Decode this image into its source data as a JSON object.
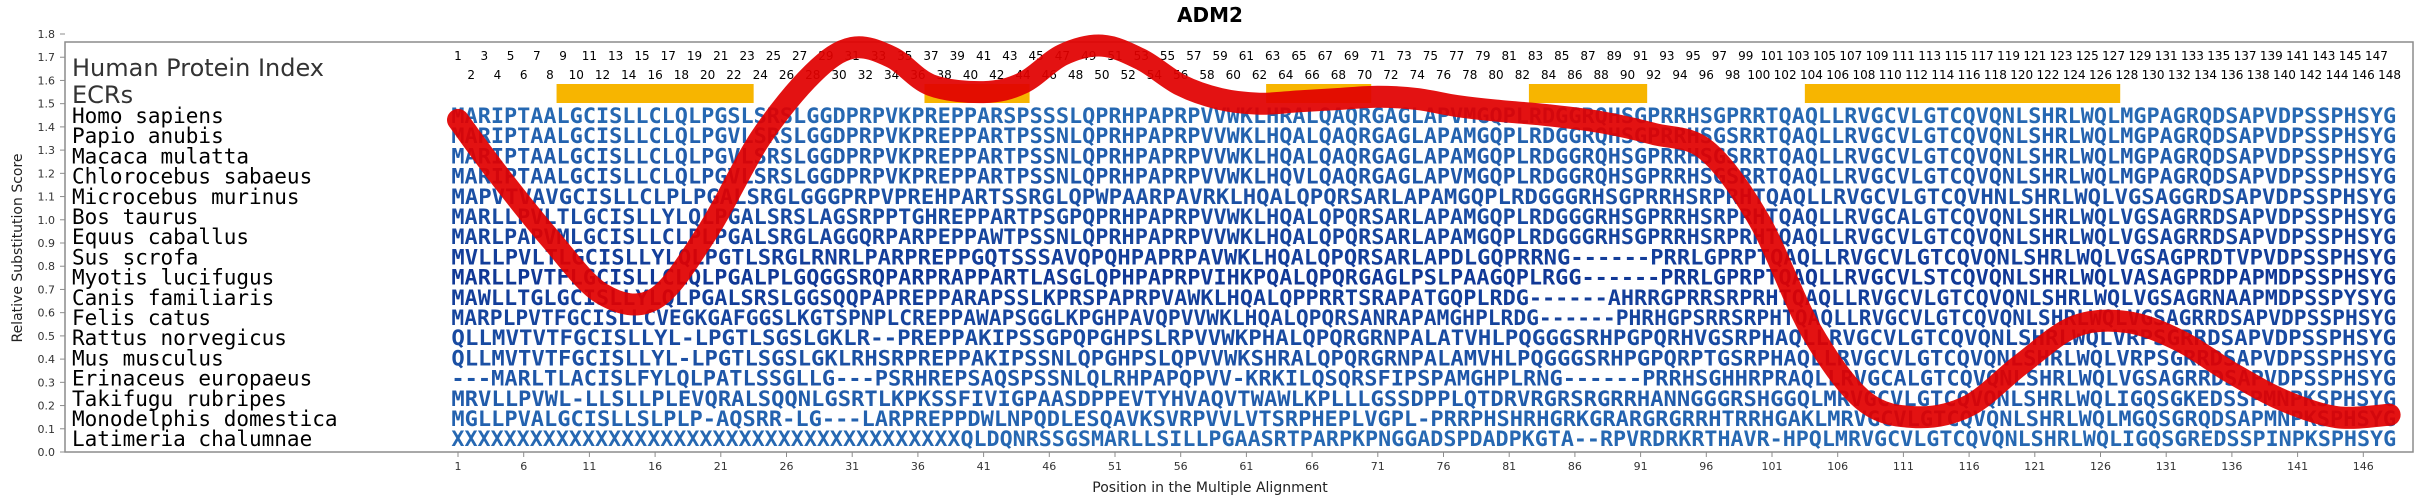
{
  "chart_data": {
    "type": "line",
    "title": "ADM2",
    "ylabel": "Relative Substitution Score",
    "xlabel": "Position in the Multiple Alignment",
    "panel_title": "Human Protein Index",
    "ecr_label": "ECRs",
    "ylim": [
      0.0,
      1.8
    ],
    "xlim": [
      1,
      148
    ],
    "y_ticks": [
      "0.0",
      "0.1",
      "0.2",
      "0.3",
      "0.4",
      "0.5",
      "0.6",
      "0.7",
      "0.8",
      "0.9",
      "1.0",
      "1.1",
      "1.2",
      "1.3",
      "1.4",
      "1.5",
      "1.6",
      "1.7",
      "1.8"
    ],
    "x_ticks": [
      "1",
      "6",
      "11",
      "16",
      "21",
      "26",
      "31",
      "36",
      "41",
      "46",
      "51",
      "56",
      "61",
      "66",
      "71",
      "76",
      "81",
      "86",
      "91",
      "96",
      "101",
      "106",
      "111",
      "116",
      "121",
      "126",
      "131",
      "136",
      "141",
      "146"
    ],
    "human_positions_odd": [
      "1",
      "3",
      "5",
      "7",
      "9",
      "11",
      "13",
      "15",
      "17",
      "19",
      "21",
      "23",
      "25",
      "27",
      "29",
      "31",
      "33",
      "35",
      "37",
      "39",
      "41",
      "43",
      "45",
      "47",
      "49",
      "51",
      "53",
      "55",
      "57",
      "59",
      "61",
      "63",
      "65",
      "67",
      "69",
      "71",
      "73",
      "75",
      "77",
      "79",
      "81",
      "83",
      "85",
      "87",
      "89",
      "91",
      "93",
      "95",
      "97",
      "99",
      "101",
      "103",
      "105",
      "107",
      "109",
      "111",
      "113",
      "115",
      "117",
      "119",
      "121",
      "123",
      "125",
      "127",
      "129",
      "131",
      "133",
      "135",
      "137",
      "139",
      "141",
      "143",
      "145",
      "147"
    ],
    "human_positions_even": [
      "2",
      "4",
      "6",
      "8",
      "10",
      "12",
      "14",
      "16",
      "18",
      "20",
      "22",
      "24",
      "26",
      "28",
      "30",
      "32",
      "34",
      "36",
      "38",
      "40",
      "42",
      "44",
      "46",
      "48",
      "50",
      "52",
      "54",
      "56",
      "58",
      "60",
      "62",
      "64",
      "66",
      "68",
      "70",
      "72",
      "74",
      "76",
      "78",
      "80",
      "82",
      "84",
      "86",
      "88",
      "90",
      "92",
      "94",
      "96",
      "98",
      "100",
      "102",
      "104",
      "106",
      "108",
      "110",
      "112",
      "114",
      "116",
      "118",
      "120",
      "122",
      "124",
      "126",
      "128",
      "130",
      "132",
      "134",
      "136",
      "138",
      "140",
      "142",
      "144",
      "146",
      "148"
    ],
    "ecrs": [
      {
        "start": 9,
        "end": 23
      },
      {
        "start": 37,
        "end": 44
      },
      {
        "start": 63,
        "end": 70
      },
      {
        "start": 83,
        "end": 91
      },
      {
        "start": 104,
        "end": 127
      }
    ],
    "curve_color": "#e10000",
    "ecr_color": "#f7b500",
    "series": [
      {
        "name": "Relative Substitution Score",
        "x": [
          1,
          4,
          8,
          12,
          16,
          20,
          24,
          28,
          31,
          34,
          37,
          41,
          44,
          47,
          50,
          53,
          56,
          59,
          62,
          65,
          68,
          71,
          74,
          77,
          80,
          84,
          88,
          92,
          96,
          100,
          104,
          108,
          112,
          116,
          120,
          124,
          128,
          132,
          136,
          140,
          144,
          148
        ],
        "y": [
          1.43,
          1.2,
          0.92,
          0.68,
          0.66,
          0.95,
          1.35,
          1.63,
          1.74,
          1.7,
          1.58,
          1.55,
          1.59,
          1.71,
          1.75,
          1.69,
          1.58,
          1.52,
          1.5,
          1.51,
          1.52,
          1.53,
          1.52,
          1.49,
          1.47,
          1.45,
          1.42,
          1.37,
          1.3,
          1.0,
          0.52,
          0.22,
          0.15,
          0.2,
          0.38,
          0.54,
          0.56,
          0.48,
          0.34,
          0.22,
          0.15,
          0.16
        ]
      }
    ],
    "rows": [
      {
        "species": "Homo sapiens",
        "sequence": "MARIPTAALGCISLLCLQLPGSLSRSLGGDPRPVKPREPPARSPSSSLQPRHPAPRPVVWKLHRALQAQRGAGLAPVMGQPLRDGGRQHSGPRRHSGPRRTQAQLLRVGCVLGTCQVQNLSHRLWQLMGPAGRQDSAPVDPSSPHSYG"
      },
      {
        "species": "Papio anubis",
        "sequence": "MARIPTAALGCISLLCLQLPGVLSRSLGGDPRPVKPREPPARTPSSNLQPRHPAPRPVVWKLHQALQAQRGAGLAPAMGQPLRDGGRQHSGPRRHSGSRRTQAQLLRVGCVLGTCQVQNLSHRLWQLMGPAGRQDSAPVDPSSPHSYG"
      },
      {
        "species": "Macaca mulatta",
        "sequence": "MARIPTAALGCISLLCLQLPGVLSRSLGGDPRPVKPREPPARTPSSNLQPRHPAPRPVVWKLHQALQAQRGAGLAPAMGQPLRDGGRQHSGPRRHSGSRRTQAQLLRVGCVLGTCQVQNLSHRLWQLMGPAGRQDSAPVDPSSPHSYG"
      },
      {
        "species": "Chlorocebus sabaeus",
        "sequence": "MARIPTAALGCISLLCLQLPGVLSRSLGGDPRPVKPREPPARTPSSNLQPRHPAPRPVVWKLHQVLQAQRGAGLAPVMGQPLRDGGRQHSGPRRHSGSRRTQAQLLRVGCVLGTCQVQNLSHRLWQLMGPAGRQDSAPVDPSSPHSYG"
      },
      {
        "species": "Microcebus murinus",
        "sequence": "MAPVTVAVGCISLLCLPLPGALSRGLGGGPRPVPREHPARTSSRGLQPWPAARPAVRKLHQALQPQRSARLAPAMGQPLRDGGGRHSGPRRHSRPRHTQAQLLRVGCVLGTCQVHNLSHRLWQLVGSAGGRDSAPVDPSSPHSYG"
      },
      {
        "species": "Bos taurus",
        "sequence": "MARLLPVLTLGCISLLYLQLPGALSRSLAGSRPPTGHREPPARTPSGPQPRHPAPRPVVWKLHQALQPQRSARLAPAMGQPLRDGGGRHSGPRRHSRPRHTQAQLLRVGCALGTCQVQNLSHRLWQLVGSAGRRDSAPVDPSSPHSYG"
      },
      {
        "species": "Equus caballus",
        "sequence": "MARLPAPVMLGCISLLCLPLPGALSRGLAGGQRPARPEPPAWTPSSNLQPRHPAPRPVVWKLHQALQPQRSARLAPAMGQPLRDGGGRHSGPRRHSRPRHTQAQLLRVGCVLGTCQVQNLSHRLWQLVGSAGRRDSAPVDPSSPHSYG"
      },
      {
        "species": "Sus scrofa",
        "sequence": "MVLLPVLTLGCISLLYLQLPGTLSRGLRNRLPARPREPPGQTSSSAVQPQHPAPRPAVWKLHQALQPQRSARLAPDLGQPRRNG------PRRLGPRPTQAQLLRVGCVLGTCQVQNLSHRLWQLVGSAGPRDTVPVDPSSPHSYG"
      },
      {
        "species": "Myotis lucifugus",
        "sequence": "MARLLPVTFLGCISLLCLQLPGALPLGQGGSRQPARPRAPPARTLASGLQPHPAPRPVIHKPQALQPQRGAGLPSLPAAGQPLRGG------PRRLGPRPTQAQLLRVGCVLSTCQVQNLSHRLWQLVASAGPRDPAPMDPSSPHSYG"
      },
      {
        "species": "Canis familiaris",
        "sequence": "MAWLLTGLGCISLLYLQLPGALSRSLGGSQQPAPREPPARAPSSLKPRSPAPRPVAWKLHQALQPPRRTSRAPATGQPLRDG------AHRRGPRRSRPRHTQAQLLRVGCVLGTCQVQNLSHRLWQLVGSAGRNAAPMDPSSPYSYG"
      },
      {
        "species": "Felis catus",
        "sequence": "MARPLPVTFGCISLLCVEGKGAFGGSLKGTSPNPLCREPPAWAPSGGLKPGHPAVQPVVWKLHQALQPQRSANRAPAMGHPLRDG------PHRHGPSRRSRPHTQAQLLRVGCVLGTCQVQNLSHRLWQLVGSAGRRDSAPVDPSSPHSYG"
      },
      {
        "species": "Rattus norvegicus",
        "sequence": "QLLMVTVTFGCISLLYL-LPGTLSGSLGKLR--PREPPAKIPSSGPQPGHPSLRPVVWKPHALQPQRGRNPALATVHLPQGGGSRHPGPQRHVGSRPHAQLLRVGCVLGTCQVQNLSHRLWQLVRPSGRRDSAPVDPSSPHSYG"
      },
      {
        "species": "Mus musculus",
        "sequence": "QLLMVTVTFGCISLLYL-LPGTLSGSLGKLRHSRPREPPAKIPSSNLQPGHPSLQPVVWKSHRALQPQRGRNPALAMVHLPQGGGSRHPGPQRPTGSRPHAQLLRVGCVLGTCQVQNLSHRLWQLVRPSGRRDSAPVDPSSPHSYG"
      },
      {
        "species": "Erinaceus europaeus",
        "sequence": "---MARLTLACISLFYLQLPATLSSGLLG---PSRHREPSAQSPSSNLQLRHPAPQPVV-KRKILQSQRSFIPSPAMGHPLRNG------PRRHSGHHRPRAQLLRVGCALGTCQVQNLSHRLWQLVGSAGRRDSAPVDPSSPHSYG"
      },
      {
        "species": "Takifugu rubripes",
        "sequence": "MRVLLPVWL-LLSLLPLEVQRALSQQNLGSRTLKPKSSFIVIGPAASDPPEVTYHVAQVTWAWLKPLLLGSSDPPLQTDRVRGRSRGRRHANNGGGRSHGGQLMRVGCVLGTCQVQNLSHRLWQLIGQSGKEDSSPMNPKSPHSYG"
      },
      {
        "species": "Monodelphis domestica",
        "sequence": "MGLLPVALGCISLLSLPLP-AQSRR-LG---LARPREPPDWLNPQDLESQAVKSVRPVVLVTSRPHEPLVGPL-PRRPHSHRHGRKGRARGRGRRHTRRHGAKLMRVGCVLGTCQVQNLSHRLWQLMGQSGRQDSAPMNPKSPHSYG"
      },
      {
        "species": "Latimeria chalumnae",
        "sequence": "XXXXXXXXXXXXXXXXXXXXXXXXXXXXXXXXXXXXXXXQLDQNRSSGSMARLLSILLPGAASRTPARPKPNGGADSPDADPKGTA--RPVRDRKRTHAVR-HPQLMRVGCVLGTCQVQNLSHRLWQLIGQSGREDSSPINPKSPHSYG"
      }
    ]
  }
}
